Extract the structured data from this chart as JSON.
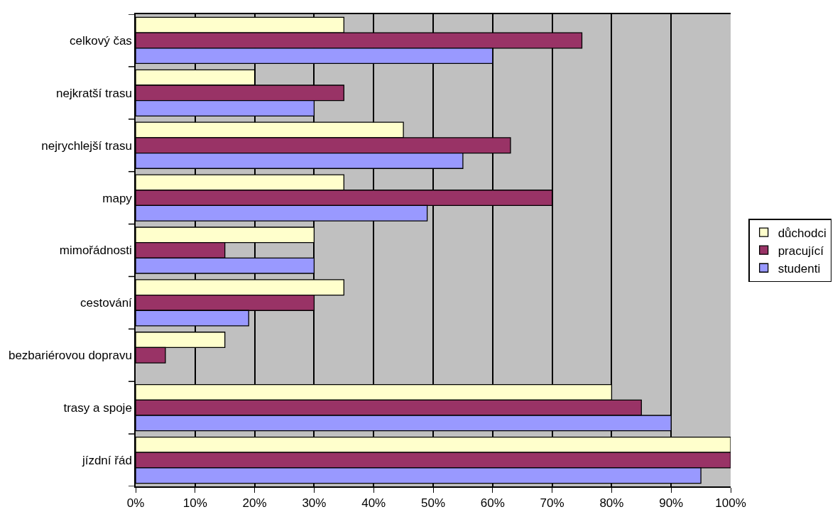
{
  "chart_data": {
    "type": "bar",
    "orientation": "horizontal",
    "categories": [
      "celkový čas",
      "nejkratší trasu",
      "nejrychlejší trasu",
      "mapy",
      "mimořádnosti",
      "cestování",
      "bezbariérovou dopravu",
      "trasy a spoje",
      "jízdní řád"
    ],
    "series": [
      {
        "name": "důchodci",
        "color": "#ffffcc",
        "values": [
          35,
          20,
          45,
          35,
          30,
          35,
          15,
          80,
          100
        ]
      },
      {
        "name": "pracující",
        "color": "#993366",
        "values": [
          75,
          35,
          63,
          70,
          15,
          30,
          5,
          85,
          100
        ]
      },
      {
        "name": "studenti",
        "color": "#9999ff",
        "values": [
          60,
          30,
          55,
          49,
          30,
          19,
          null,
          90,
          95
        ]
      }
    ],
    "xlim": [
      0,
      100
    ],
    "xticks": [
      {
        "value": 0,
        "label": "0%"
      },
      {
        "value": 10,
        "label": "10%"
      },
      {
        "value": 20,
        "label": "20%"
      },
      {
        "value": 30,
        "label": "30%"
      },
      {
        "value": 40,
        "label": "40%"
      },
      {
        "value": 50,
        "label": "50%"
      },
      {
        "value": 60,
        "label": "60%"
      },
      {
        "value": 70,
        "label": "70%"
      },
      {
        "value": 80,
        "label": "80%"
      },
      {
        "value": 90,
        "label": "90%"
      },
      {
        "value": 100,
        "label": "100%"
      }
    ],
    "grid": "x",
    "legend": "right"
  }
}
